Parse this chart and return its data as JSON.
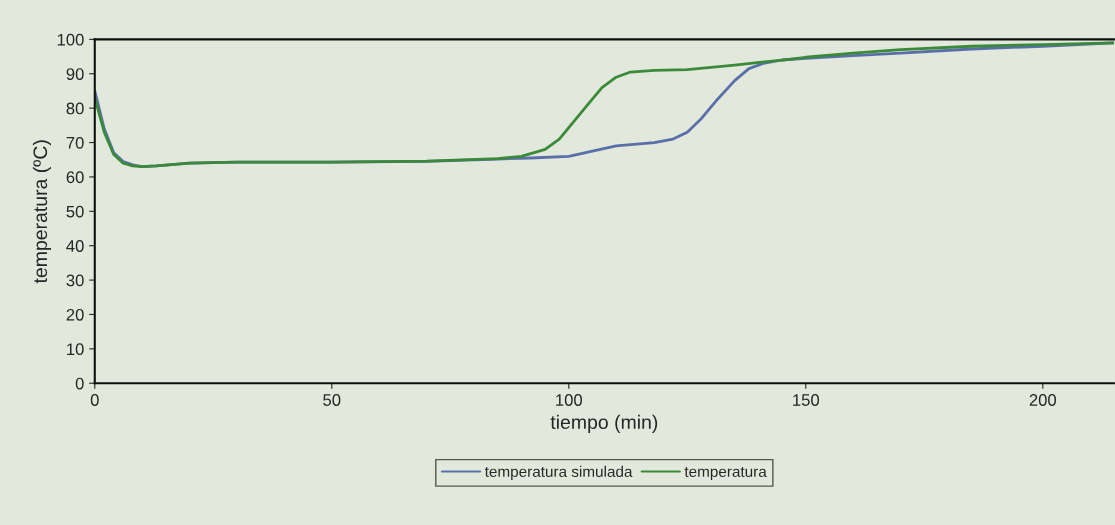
{
  "chart_data": {
    "type": "line",
    "xlabel": "tiempo (min)",
    "ylabel": "temperatura (ºC)",
    "xlim": [
      0,
      215
    ],
    "xticks": [
      0,
      50,
      100,
      150,
      200
    ],
    "ylim": [
      0,
      100
    ],
    "yticks": [
      0,
      10,
      20,
      30,
      40,
      50,
      60,
      70,
      80,
      90,
      100
    ],
    "grid": false,
    "legend": "bottom",
    "marker": "none",
    "line_style": "solid",
    "series": [
      {
        "name": "temperatura simulada",
        "color": "#5a6faa",
        "x": [
          0,
          2,
          4,
          6,
          8,
          10,
          13,
          20,
          30,
          50,
          70,
          85,
          92,
          100,
          105,
          110,
          118,
          122,
          125,
          128,
          131,
          135,
          138,
          141,
          145,
          150,
          160,
          170,
          185,
          200,
          215
        ],
        "values": [
          85,
          74,
          67,
          64.5,
          63.5,
          63,
          63.2,
          64,
          64.3,
          64.3,
          64.5,
          65.2,
          65.5,
          66,
          67.5,
          69,
          70,
          71,
          73,
          77,
          82,
          88,
          91.5,
          93,
          94,
          94.5,
          95.3,
          96,
          97.2,
          98,
          99
        ]
      },
      {
        "name": "temperatura",
        "color": "#3a8a3a",
        "x": [
          0,
          2,
          4,
          6,
          8,
          10,
          13,
          20,
          30,
          50,
          70,
          85,
          90,
          95,
          98,
          101,
          104,
          107,
          110,
          113,
          118,
          125,
          135,
          145,
          150,
          160,
          170,
          185,
          200,
          215
        ],
        "values": [
          83,
          73,
          66.5,
          64,
          63.2,
          63,
          63.2,
          64,
          64.3,
          64.3,
          64.6,
          65.3,
          66,
          68,
          71,
          76,
          81,
          86,
          89,
          90.5,
          91,
          91.2,
          92.5,
          94,
          94.8,
          96,
          97,
          98,
          98.5,
          99
        ]
      }
    ]
  }
}
